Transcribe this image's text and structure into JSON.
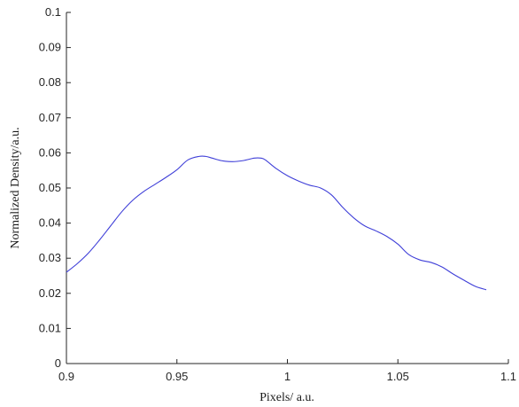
{
  "chart_data": {
    "type": "line",
    "title": "",
    "xlabel": "Pixels/ a.u.",
    "ylabel": "Normalized Density/a.u.",
    "xlim": [
      0.9,
      1.1
    ],
    "ylim": [
      0,
      0.1
    ],
    "x_ticks": [
      "0.9",
      "0.95",
      "1",
      "1.05",
      "1.1"
    ],
    "y_ticks": [
      "0",
      "0.01",
      "0.02",
      "0.03",
      "0.04",
      "0.05",
      "0.06",
      "0.07",
      "0.08",
      "0.09",
      "0.1"
    ],
    "grid": false,
    "series": [
      {
        "color": "#3f3fd8",
        "x": [
          0.9,
          0.905,
          0.91,
          0.915,
          0.92,
          0.925,
          0.93,
          0.935,
          0.94,
          0.945,
          0.95,
          0.955,
          0.96,
          0.963,
          0.966,
          0.97,
          0.975,
          0.98,
          0.985,
          0.988,
          0.99,
          0.995,
          1.0,
          1.005,
          1.01,
          1.015,
          1.02,
          1.025,
          1.03,
          1.035,
          1.04,
          1.045,
          1.05,
          1.055,
          1.06,
          1.065,
          1.07,
          1.075,
          1.08,
          1.085,
          1.09
        ],
        "y": [
          0.026,
          0.0285,
          0.0315,
          0.0352,
          0.0392,
          0.0432,
          0.0465,
          0.049,
          0.051,
          0.053,
          0.0552,
          0.058,
          0.059,
          0.059,
          0.0585,
          0.0578,
          0.0575,
          0.0578,
          0.0585,
          0.0585,
          0.058,
          0.0555,
          0.0535,
          0.052,
          0.0508,
          0.05,
          0.048,
          0.0445,
          0.0415,
          0.0392,
          0.0378,
          0.0362,
          0.034,
          0.031,
          0.0295,
          0.0288,
          0.0275,
          0.0255,
          0.0237,
          0.022,
          0.021
        ]
      }
    ]
  }
}
